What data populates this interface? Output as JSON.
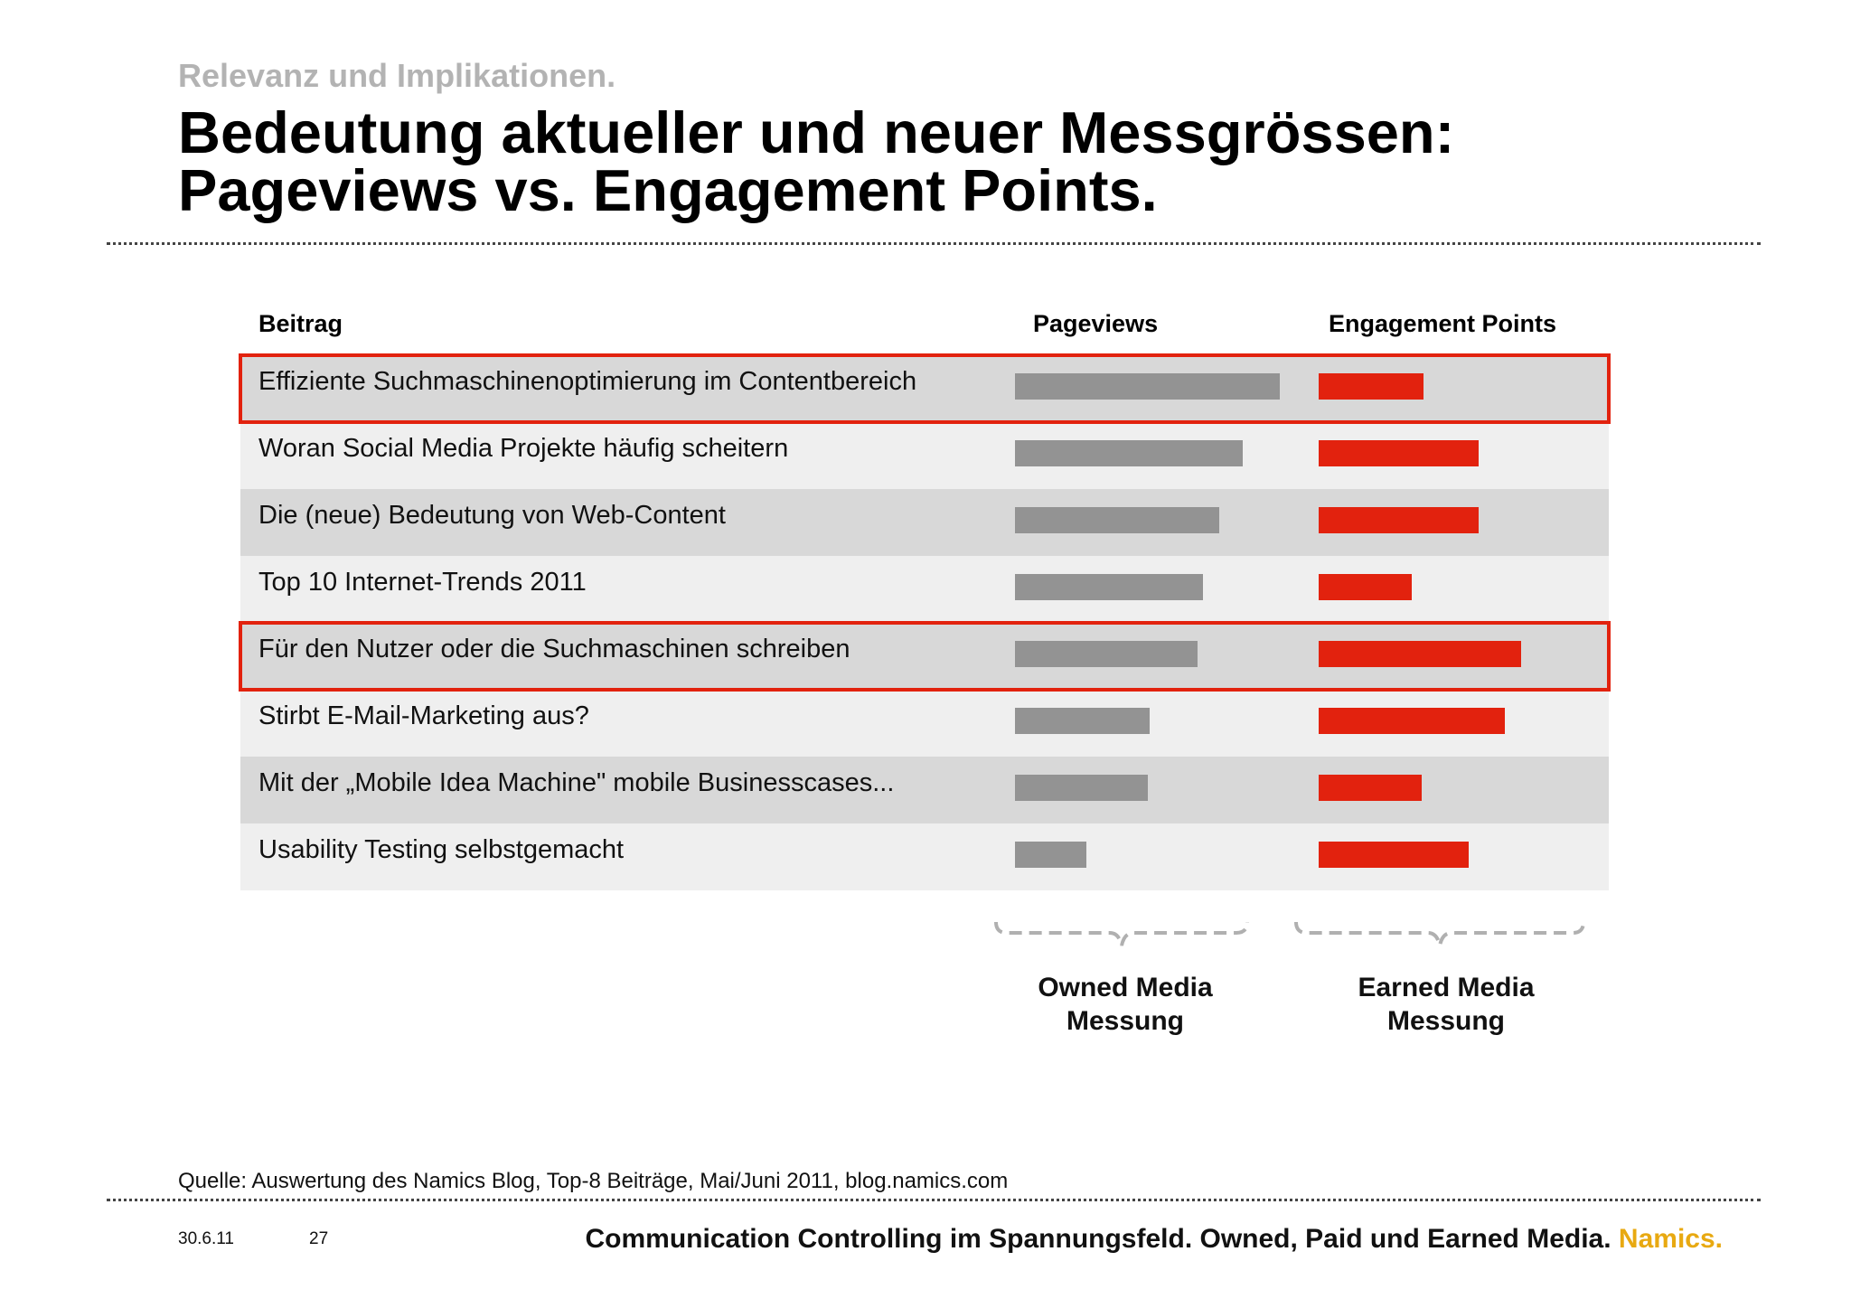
{
  "slide": {
    "supertitle": "Relevanz und Implikationen.",
    "title_line1": "Bedeutung aktueller und neuer Messgrössen:",
    "title_line2": "Pageviews vs. Engagement Points.",
    "source": "Quelle: Auswertung des Namics Blog, Top-8 Beiträge, Mai/Juni 2011, blog.namics.com",
    "date": "30.6.11",
    "page": "27",
    "footer_text": "Communication Controlling im Spannungsfeld. Owned, Paid und Earned Media.",
    "brand": "Namics.",
    "owned_caption_1": "Owned Media",
    "owned_caption_2": "Messung",
    "earned_caption_1": "Earned Media",
    "earned_caption_2": "Messung"
  },
  "colors": {
    "pageviews_bar": "#939393",
    "engagement_bar": "#e2220e",
    "highlight": "#e2220e",
    "brand": "#e8a911"
  },
  "chart_data": {
    "type": "bar",
    "columns": [
      "Beitrag",
      "Pageviews",
      "Engagement Points"
    ],
    "categories": [
      "Effiziente Suchmaschinenoptimierung im Contentbereich",
      "Woran Social Media Projekte häufig scheitern",
      "Die (neue) Bedeutung von Web-Content",
      "Top 10 Internet-Trends 2011",
      "Für den Nutzer oder die Suchmaschinen schreiben",
      "Stirbt E-Mail-Marketing aus?",
      "Mit der „Mobile Idea Machine\" mobile Businesscases...",
      "Usability Testing selbstgemacht"
    ],
    "series": [
      {
        "name": "Pageviews",
        "values": [
          100,
          86,
          77,
          71,
          69,
          51,
          50,
          27
        ]
      },
      {
        "name": "Engagement Points",
        "values": [
          52,
          79,
          79,
          46,
          100,
          92,
          51,
          74
        ]
      }
    ],
    "highlighted_rows": [
      0,
      4
    ],
    "unit": "relative (no axis printed)"
  }
}
